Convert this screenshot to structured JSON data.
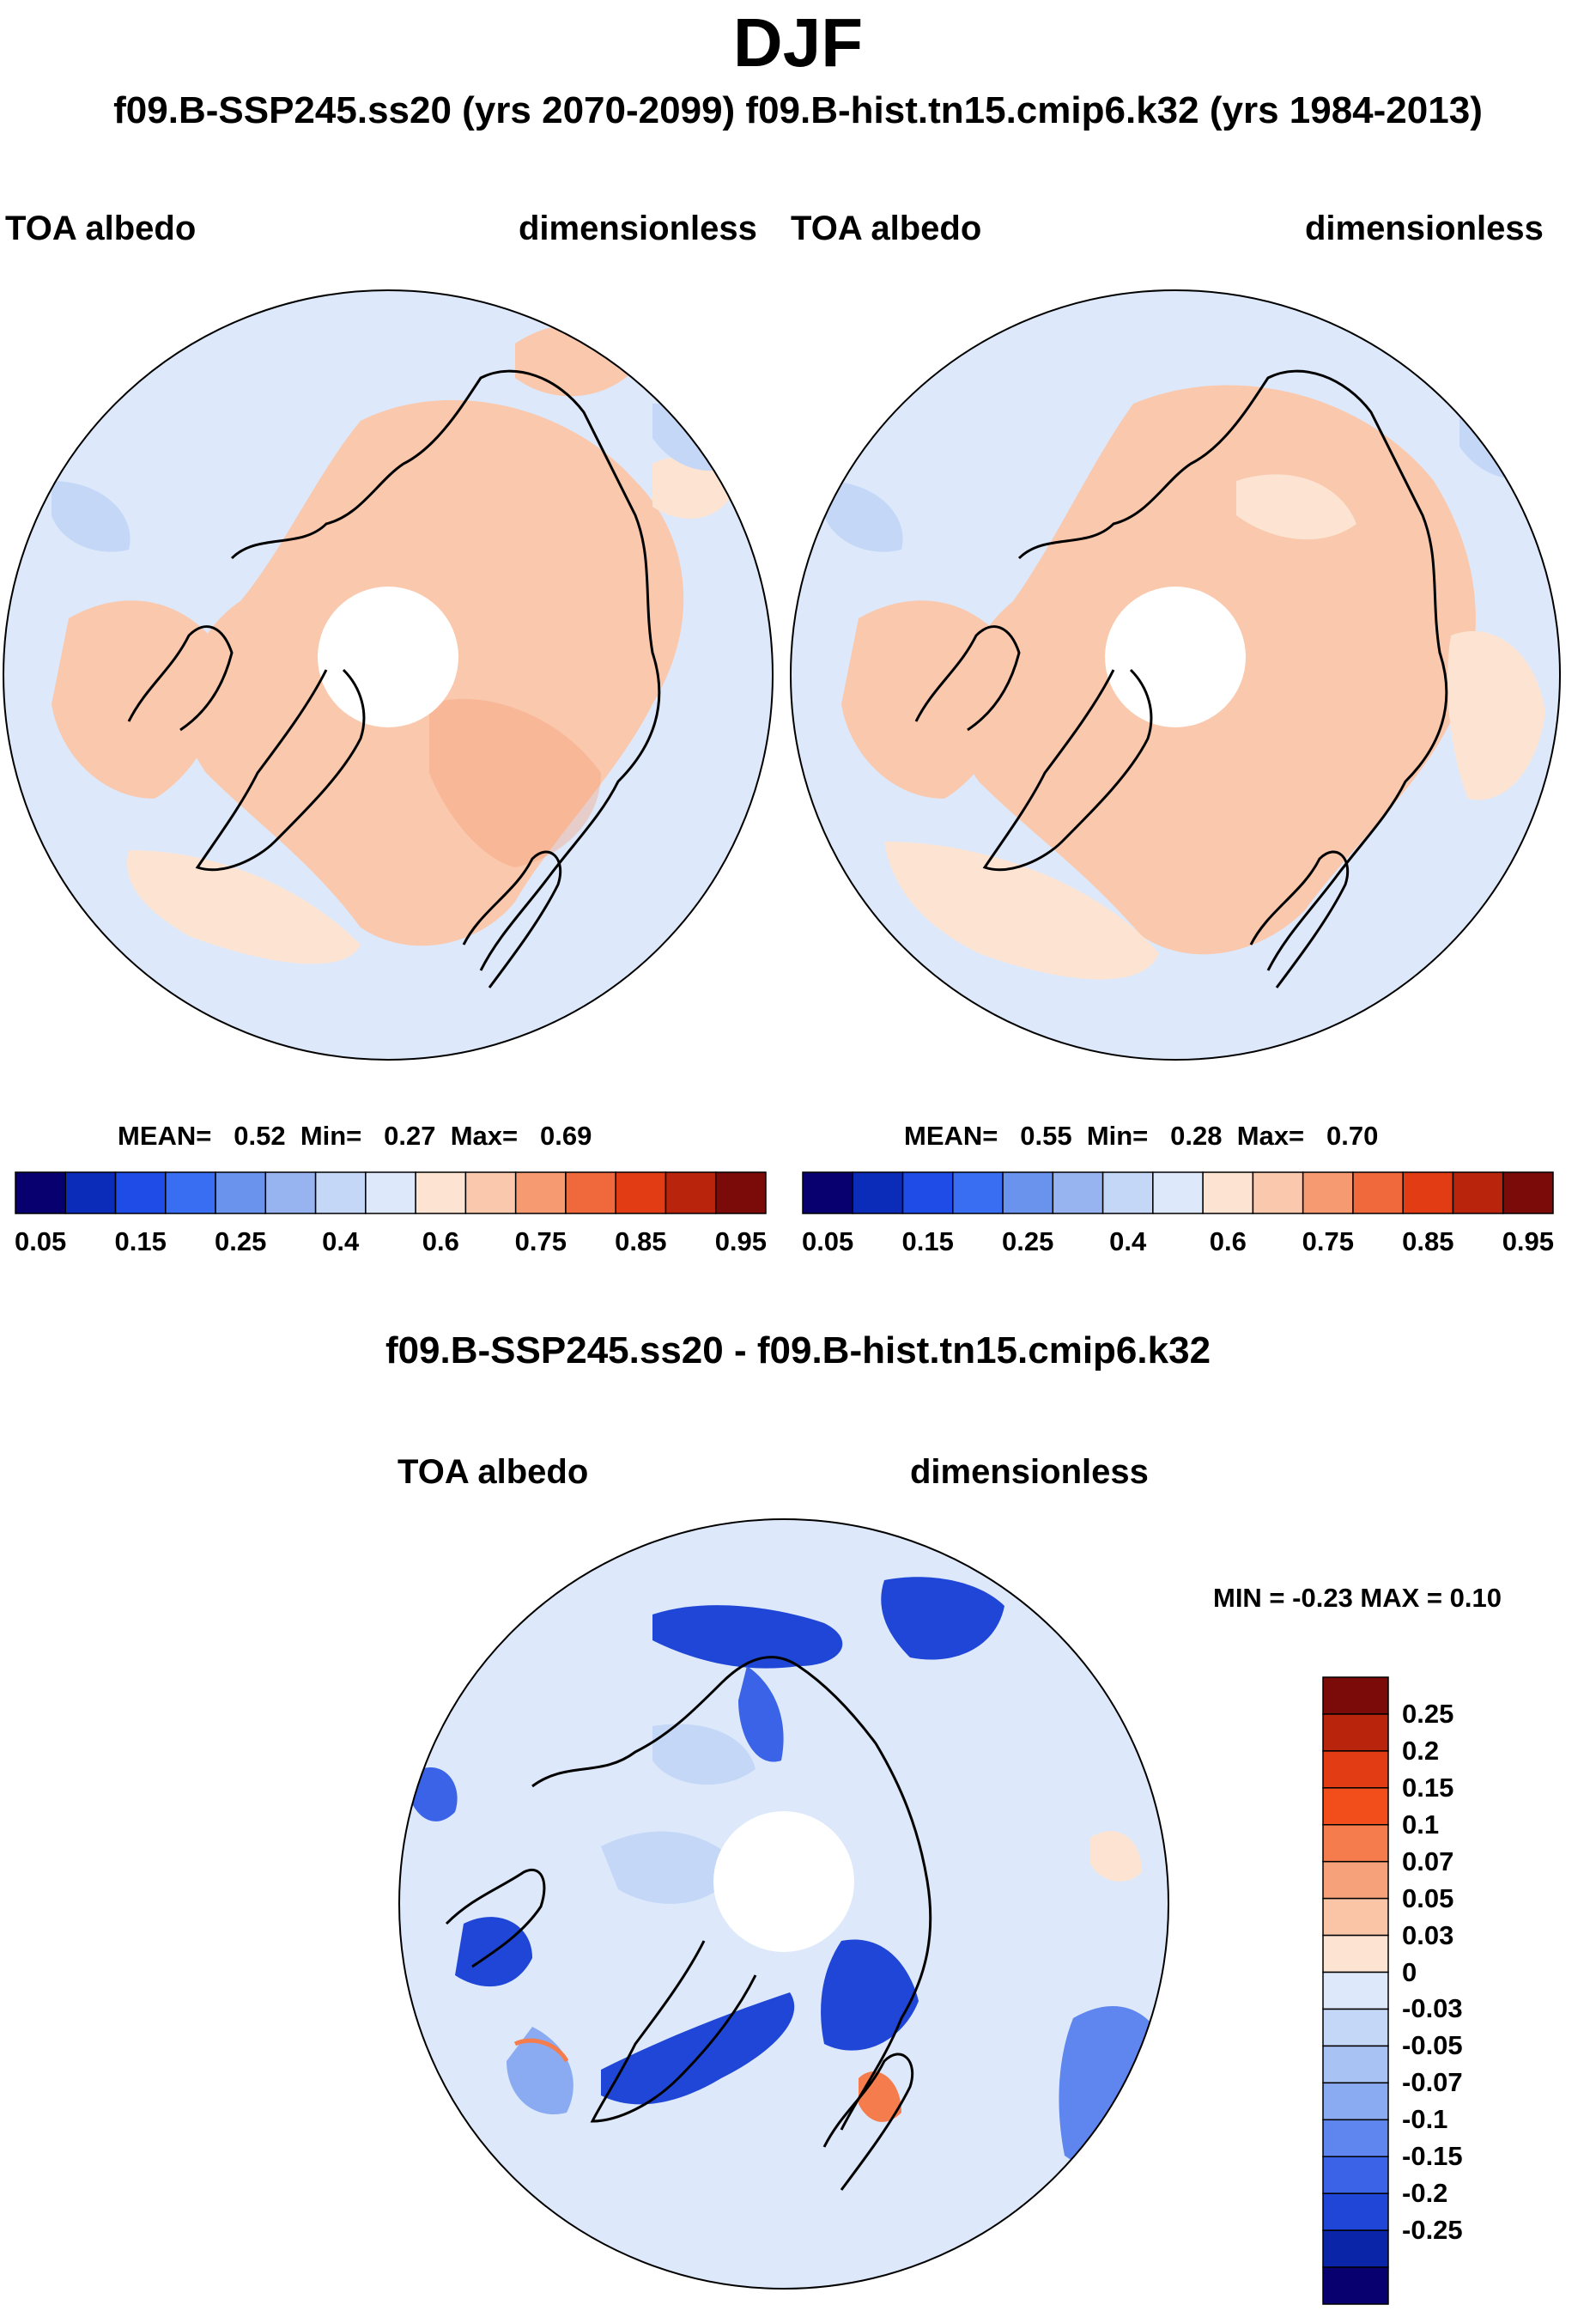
{
  "figure": {
    "title": "DJF",
    "subtitle": "f09.B-SSP245.ss20 (yrs 2070-2099)  f09.B-hist.tn15.cmip6.k32 (yrs 1984-2013)"
  },
  "panels": {
    "left": {
      "variable_label": "TOA albedo",
      "units_label": "dimensionless",
      "stats": {
        "mean_label": "MEAN=",
        "mean": "0.52",
        "min_label": "Min=",
        "min": "0.27",
        "max_label": "Max=",
        "max": "0.69"
      }
    },
    "right": {
      "variable_label": "TOA albedo",
      "units_label": "dimensionless",
      "stats": {
        "mean_label": "MEAN=",
        "mean": "0.55",
        "min_label": "Min=",
        "min": "0.28",
        "max_label": "Max=",
        "max": "0.70"
      }
    },
    "diff": {
      "title": "f09.B-SSP245.ss20 - f09.B-hist.tn15.cmip6.k32",
      "variable_label": "TOA albedo",
      "units_label": "dimensionless",
      "minmax_text": "MIN =  -0.23 MAX =   0.10"
    }
  },
  "colorbars": {
    "absolute": {
      "colors": [
        "#08006e",
        "#0a2cb8",
        "#1f4be6",
        "#3a6ef2",
        "#6a93ee",
        "#98b4f0",
        "#c4d7f7",
        "#dde9fb",
        "#fde4d2",
        "#f9c8ad",
        "#f59a71",
        "#f0693c",
        "#e23c14",
        "#b9240d",
        "#7a0b09"
      ],
      "tick_labels": [
        "0.05",
        "0.15",
        "0.25",
        "0.4",
        "0.6",
        "0.75",
        "0.85",
        "0.95"
      ],
      "tick_boundaries": [
        1,
        3,
        5,
        7,
        9,
        11,
        13,
        15
      ]
    },
    "difference": {
      "colors_top_to_bottom": [
        "#7a0b09",
        "#b9240d",
        "#e23c14",
        "#f24e1c",
        "#f57c4c",
        "#f7a17a",
        "#fac5a6",
        "#fde4d2",
        "#dde9fb",
        "#c4d7f7",
        "#a8c2f3",
        "#8aabf1",
        "#5f86ee",
        "#3a63e8",
        "#1f46d6",
        "#0b25a8",
        "#08006e"
      ],
      "tick_labels_top_to_bottom": [
        "0.25",
        "0.2",
        "0.15",
        "0.1",
        "0.07",
        "0.05",
        "0.03",
        "0",
        "-0.03",
        "-0.05",
        "-0.07",
        "-0.1",
        "-0.15",
        "-0.2",
        "-0.25"
      ]
    }
  },
  "legend_colors": {
    "land_outline": "#000000",
    "pole_mask": "#ffffff"
  }
}
